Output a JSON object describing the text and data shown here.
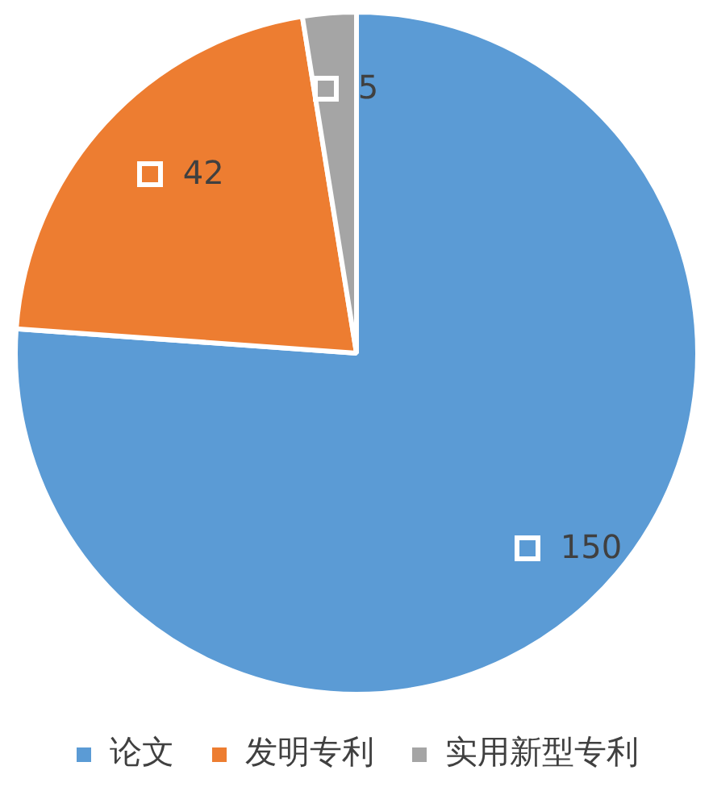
{
  "chart_data": {
    "type": "pie",
    "categories": [
      "论文",
      "发明专利",
      "实用新型专利"
    ],
    "values": [
      150,
      42,
      5
    ],
    "colors": [
      "#5b9bd5",
      "#ed7d31",
      "#a5a5a5"
    ],
    "data_labels": true,
    "legend": "bottom"
  }
}
